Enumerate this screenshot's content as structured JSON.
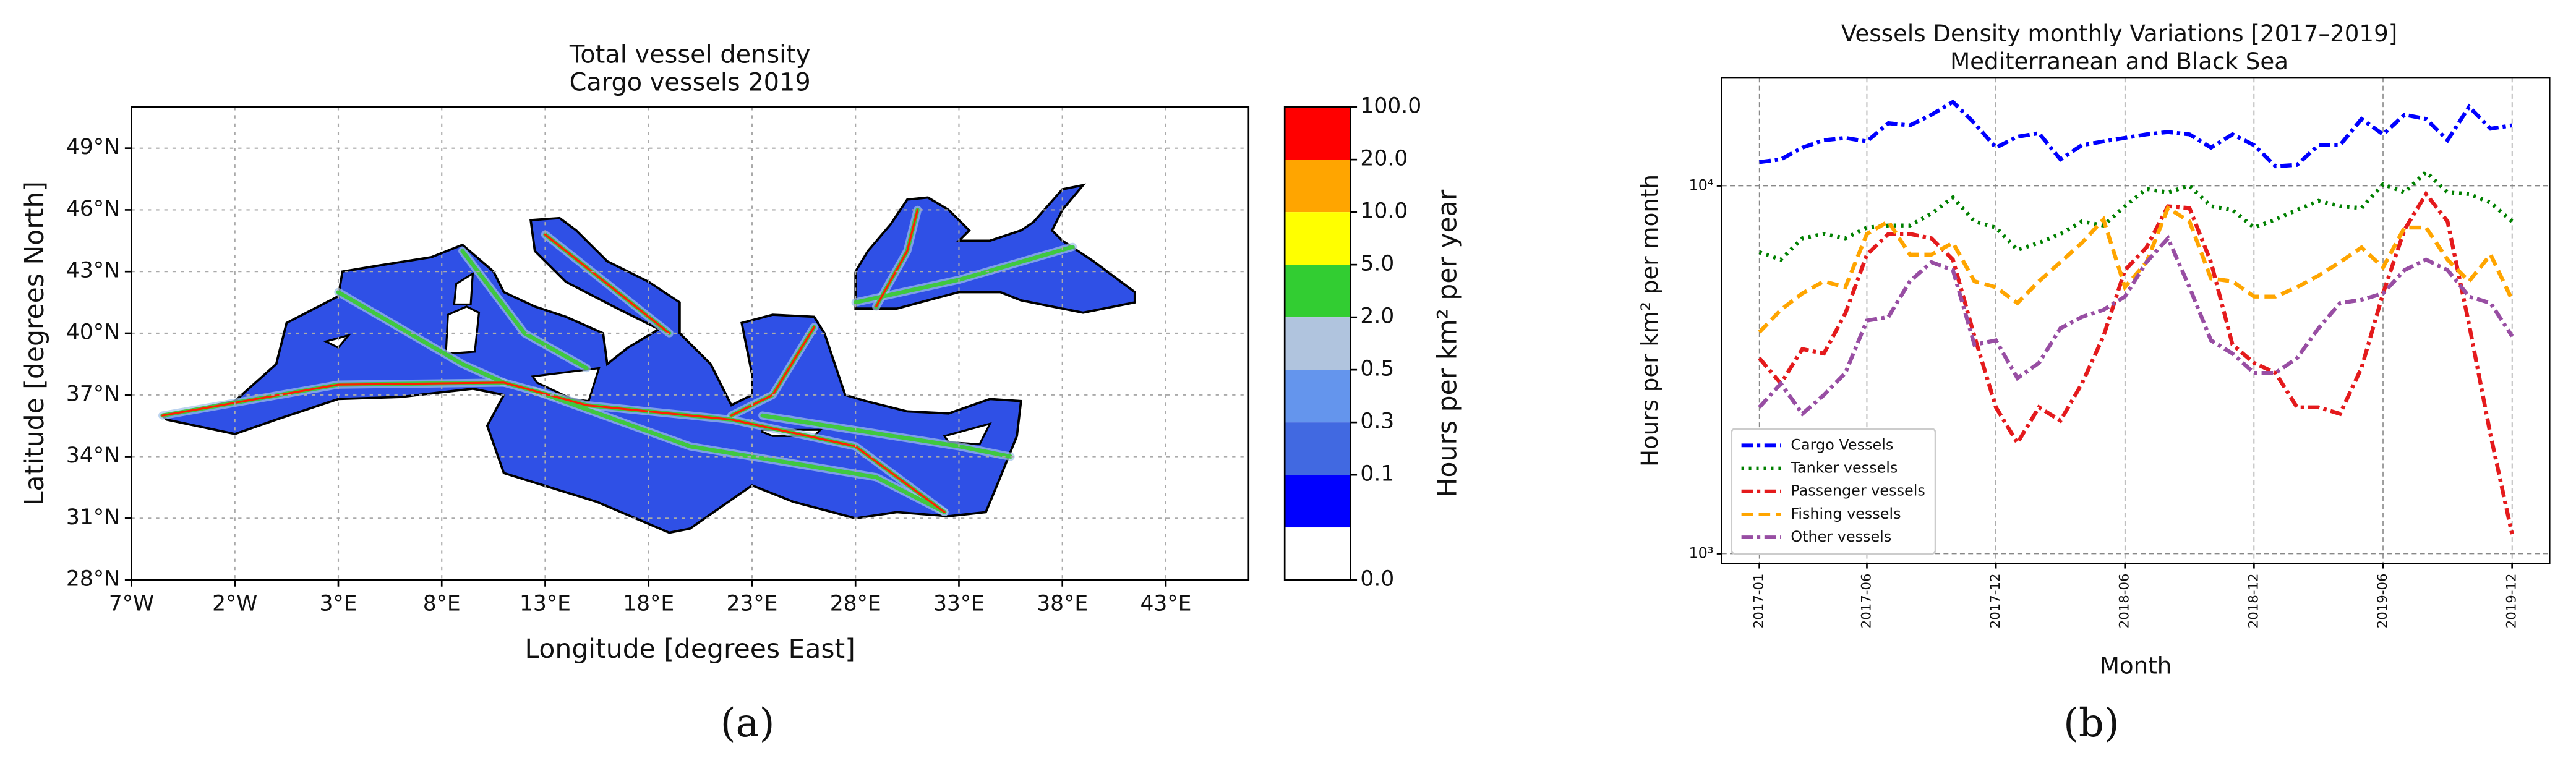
{
  "chart_data": [
    {
      "type": "map",
      "title": "Total vessel density",
      "subtitle": "Cargo vessels 2019",
      "xlabel": "Longitude [degrees East]",
      "ylabel": "Latitude [degrees North]",
      "xlim": [
        -7,
        47
      ],
      "ylim": [
        28,
        51
      ],
      "xticks": [
        {
          "value": -7,
          "label": "7°W"
        },
        {
          "value": -2,
          "label": "2°W"
        },
        {
          "value": 3,
          "label": "3°E"
        },
        {
          "value": 8,
          "label": "8°E"
        },
        {
          "value": 13,
          "label": "13°E"
        },
        {
          "value": 18,
          "label": "18°E"
        },
        {
          "value": 23,
          "label": "23°E"
        },
        {
          "value": 28,
          "label": "28°E"
        },
        {
          "value": 33,
          "label": "33°E"
        },
        {
          "value": 38,
          "label": "38°E"
        },
        {
          "value": 43,
          "label": "43°E"
        }
      ],
      "yticks": [
        {
          "value": 28,
          "label": "28°N"
        },
        {
          "value": 31,
          "label": "31°N"
        },
        {
          "value": 34,
          "label": "34°N"
        },
        {
          "value": 37,
          "label": "37°N"
        },
        {
          "value": 40,
          "label": "40°N"
        },
        {
          "value": 43,
          "label": "43°N"
        },
        {
          "value": 46,
          "label": "46°N"
        },
        {
          "value": 49,
          "label": "49°N"
        }
      ],
      "grid": true,
      "colorbar": {
        "label": "Hours per km² per year",
        "colors": [
          "#ff0000",
          "#ffa500",
          "#ffff00",
          "#32cd32",
          "#b0c4de",
          "#6495ed",
          "#4169e1",
          "#0000ff",
          "#ffffff"
        ],
        "ticks": [
          {
            "value": 100,
            "label": "100.0"
          },
          {
            "value": 20,
            "label": "20.0"
          },
          {
            "value": 10,
            "label": "10.0"
          },
          {
            "value": 5,
            "label": "5.0"
          },
          {
            "value": 2,
            "label": "2.0"
          },
          {
            "value": 0.5,
            "label": "0.5"
          },
          {
            "value": 0.3,
            "label": "0.3"
          },
          {
            "value": 0.1,
            "label": "0.1"
          },
          {
            "value": 0,
            "label": "0.0"
          }
        ]
      },
      "panel_label": "(a)"
    },
    {
      "type": "line",
      "title": "Vessels Density monthly Variations [2017–2019]",
      "subtitle": "Mediterranean and Black Sea",
      "xlabel": "Month",
      "ylabel": "Hours per km² per month",
      "categories": [
        "2017-01",
        null,
        null,
        null,
        null,
        "2017-06",
        null,
        null,
        null,
        null,
        null,
        "2017-12",
        null,
        null,
        null,
        null,
        null,
        "2018-06",
        null,
        null,
        null,
        null,
        null,
        "2018-12",
        null,
        null,
        null,
        null,
        null,
        "2019-06",
        null,
        null,
        null,
        null,
        null,
        "2019-12"
      ],
      "ylim": [
        940,
        19700
      ],
      "log_scale": true,
      "yticks": [
        {
          "value": 1000,
          "label": "10³"
        },
        {
          "value": 10000,
          "label": "10⁴"
        }
      ],
      "grid": true,
      "legend": "lower left",
      "series": [
        {
          "name": "Cargo Vessels",
          "color": "#0000ff",
          "linestyle": "dashdot",
          "values": [
            11600,
            11800,
            12700,
            13300,
            13500,
            13200,
            14800,
            14600,
            15600,
            16900,
            14800,
            12700,
            13600,
            13900,
            11800,
            12900,
            13200,
            13500,
            13800,
            14000,
            13800,
            12700,
            13800,
            12900,
            11300,
            11400,
            12900,
            12900,
            15200,
            13800,
            15600,
            15200,
            13300,
            16400,
            14300,
            14600
          ]
        },
        {
          "name": "Tanker vessels",
          "color": "#008000",
          "linestyle": "dotted",
          "values": [
            6600,
            6300,
            7200,
            7400,
            7200,
            7700,
            7800,
            7800,
            8400,
            9300,
            8000,
            7700,
            6700,
            7000,
            7400,
            8000,
            7800,
            8800,
            9800,
            9600,
            10000,
            8800,
            8600,
            7700,
            8100,
            8600,
            9100,
            8800,
            8700,
            10100,
            9600,
            10900,
            9600,
            9500,
            9000,
            8000
          ]
        },
        {
          "name": "Passenger vessels",
          "color": "#e41a1c",
          "linestyle": "dashdot",
          "values": [
            3400,
            2900,
            3600,
            3500,
            4500,
            6500,
            7400,
            7400,
            7200,
            6300,
            3900,
            2500,
            2000,
            2500,
            2300,
            2900,
            3900,
            5900,
            6800,
            8800,
            8700,
            6200,
            3700,
            3300,
            3100,
            2500,
            2500,
            2400,
            3200,
            5100,
            7600,
            9500,
            8000,
            4200,
            2100,
            1130
          ]
        },
        {
          "name": "Fishing vessels",
          "color": "#ffa500",
          "linestyle": "dashed",
          "values": [
            4000,
            4600,
            5100,
            5500,
            5300,
            7400,
            8000,
            6500,
            6500,
            7000,
            5500,
            5300,
            4800,
            5500,
            6200,
            7000,
            8100,
            5300,
            6200,
            8700,
            8000,
            5600,
            5500,
            5000,
            5000,
            5300,
            5700,
            6200,
            6800,
            6000,
            7700,
            7700,
            6300,
            5500,
            6500,
            4900
          ]
        },
        {
          "name": "Other vessels",
          "color": "#984ea3",
          "linestyle": "dashdot",
          "values": [
            2500,
            2900,
            2400,
            2700,
            3100,
            4300,
            4400,
            5500,
            6200,
            5900,
            3700,
            3800,
            3000,
            3300,
            4100,
            4400,
            4600,
            5000,
            6200,
            7200,
            5300,
            3800,
            3500,
            3100,
            3100,
            3400,
            4100,
            4800,
            4900,
            5100,
            5900,
            6300,
            5900,
            5000,
            4800,
            3900
          ]
        }
      ],
      "panel_label": "(b)"
    }
  ]
}
